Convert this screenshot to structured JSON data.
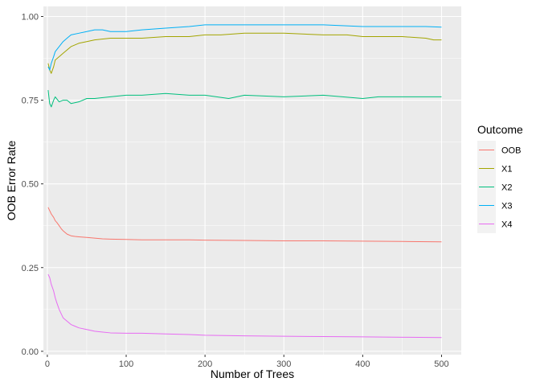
{
  "chart_data": {
    "type": "line",
    "xlabel": "Number of Trees",
    "ylabel": "OOB Error Rate",
    "xlim": [
      -5,
      525
    ],
    "ylim": [
      -0.01,
      1.03
    ],
    "x_ticks": [
      0,
      100,
      200,
      300,
      400,
      500
    ],
    "x_tick_labels": [
      "0",
      "100",
      "200",
      "300",
      "400",
      "500"
    ],
    "y_ticks": [
      0.0,
      0.25,
      0.5,
      0.75,
      1.0
    ],
    "y_tick_labels": [
      "0.00",
      "0.25",
      "0.50",
      "0.75",
      "1.00"
    ],
    "grid": true,
    "panel_background": "#ebebeb",
    "legend": {
      "title": "Outcome",
      "position": "right"
    },
    "series": [
      {
        "name": "OOB",
        "color": "#F8766D",
        "x": [
          1,
          3,
          5,
          8,
          10,
          12,
          15,
          18,
          20,
          25,
          30,
          35,
          40,
          50,
          60,
          70,
          80,
          100,
          120,
          150,
          180,
          200,
          250,
          300,
          350,
          400,
          450,
          500
        ],
        "y": [
          0.43,
          0.42,
          0.41,
          0.4,
          0.39,
          0.385,
          0.375,
          0.365,
          0.36,
          0.35,
          0.345,
          0.343,
          0.342,
          0.34,
          0.338,
          0.336,
          0.335,
          0.334,
          0.333,
          0.333,
          0.333,
          0.332,
          0.331,
          0.33,
          0.33,
          0.329,
          0.328,
          0.327
        ]
      },
      {
        "name": "X1",
        "color": "#A3A500",
        "x": [
          1,
          3,
          5,
          8,
          10,
          15,
          20,
          25,
          30,
          40,
          50,
          60,
          80,
          100,
          120,
          150,
          180,
          200,
          220,
          250,
          300,
          350,
          380,
          400,
          420,
          450,
          480,
          490,
          500
        ],
        "y": [
          0.86,
          0.84,
          0.83,
          0.85,
          0.87,
          0.88,
          0.89,
          0.9,
          0.91,
          0.92,
          0.925,
          0.93,
          0.935,
          0.935,
          0.935,
          0.94,
          0.94,
          0.945,
          0.945,
          0.95,
          0.95,
          0.945,
          0.945,
          0.94,
          0.94,
          0.94,
          0.935,
          0.93,
          0.93
        ]
      },
      {
        "name": "X2",
        "color": "#00BF7D",
        "x": [
          1,
          3,
          5,
          8,
          10,
          15,
          20,
          25,
          30,
          40,
          50,
          60,
          80,
          100,
          120,
          150,
          180,
          200,
          230,
          250,
          300,
          350,
          400,
          420,
          450,
          480,
          500
        ],
        "y": [
          0.78,
          0.74,
          0.73,
          0.75,
          0.76,
          0.745,
          0.75,
          0.75,
          0.74,
          0.745,
          0.755,
          0.755,
          0.76,
          0.765,
          0.765,
          0.77,
          0.765,
          0.765,
          0.755,
          0.765,
          0.76,
          0.765,
          0.755,
          0.76,
          0.76,
          0.76,
          0.76
        ]
      },
      {
        "name": "X3",
        "color": "#00B0F6",
        "x": [
          1,
          3,
          5,
          8,
          10,
          15,
          20,
          25,
          30,
          40,
          50,
          60,
          70,
          80,
          100,
          120,
          150,
          180,
          200,
          250,
          300,
          350,
          400,
          420,
          450,
          480,
          500
        ],
        "y": [
          0.85,
          0.84,
          0.86,
          0.88,
          0.895,
          0.91,
          0.925,
          0.935,
          0.945,
          0.95,
          0.955,
          0.96,
          0.96,
          0.955,
          0.955,
          0.96,
          0.965,
          0.97,
          0.975,
          0.975,
          0.975,
          0.975,
          0.97,
          0.97,
          0.97,
          0.97,
          0.968
        ]
      },
      {
        "name": "X4",
        "color": "#E76BF3",
        "x": [
          1,
          3,
          5,
          8,
          10,
          12,
          15,
          18,
          20,
          25,
          30,
          35,
          40,
          50,
          60,
          80,
          100,
          120,
          150,
          180,
          200,
          250,
          300,
          350,
          400,
          450,
          500
        ],
        "y": [
          0.23,
          0.22,
          0.2,
          0.18,
          0.16,
          0.145,
          0.125,
          0.11,
          0.1,
          0.09,
          0.08,
          0.075,
          0.07,
          0.065,
          0.06,
          0.055,
          0.054,
          0.054,
          0.052,
          0.05,
          0.048,
          0.046,
          0.045,
          0.044,
          0.043,
          0.042,
          0.041
        ]
      }
    ]
  }
}
